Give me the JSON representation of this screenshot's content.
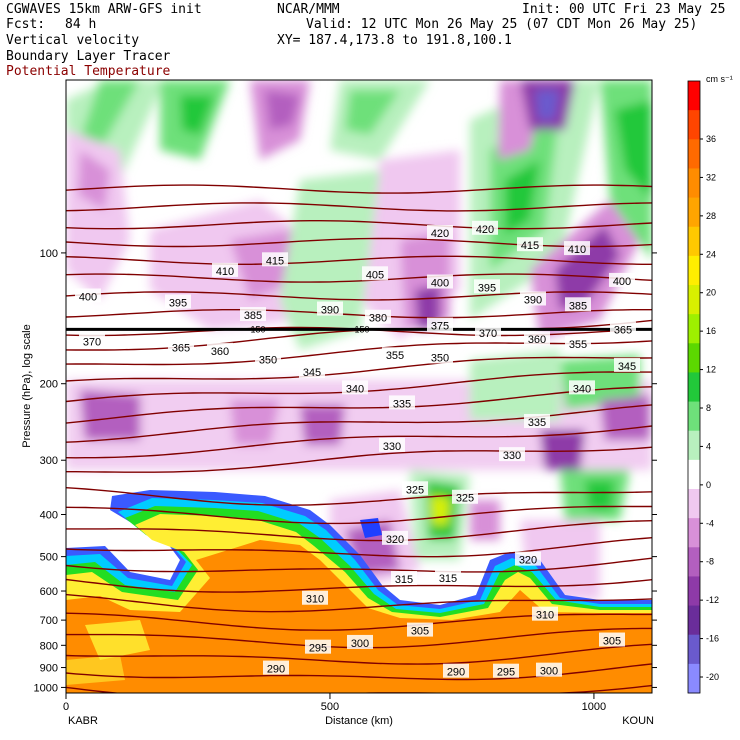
{
  "header": {
    "model": "CGWAVES 15km ARW-GFS init",
    "org": "NCAR/MMM",
    "init": "Init: 00 UTC Fri 23 May 25",
    "fcst_label": "Fcst:",
    "fcst_value": "84 h",
    "valid": "Valid: 12 UTC Mon 26 May 25 (07 CDT Mon 26 May 25)",
    "field1": "Vertical velocity",
    "xy": "XY= 187.4,173.8 to 191.8,100.1",
    "field2": "Boundary Layer Tracer",
    "field3": "Potential Temperature"
  },
  "chart_data": {
    "type": "heatmap",
    "xlabel": "Distance (km)",
    "ylabel": "Pressure (hPa), log scale",
    "x_ticks": [
      "0",
      "500",
      "1000"
    ],
    "x_tick_values": [
      0,
      500,
      1000
    ],
    "xlim": [
      0,
      1110
    ],
    "y_ticks": [
      "100",
      "200",
      "300",
      "400",
      "500",
      "600",
      "700",
      "800",
      "900",
      "1000"
    ],
    "y_tick_values": [
      100,
      200,
      300,
      400,
      500,
      600,
      700,
      800,
      900,
      1000
    ],
    "ylim": [
      1030,
      40
    ],
    "endpoint_left": "KABR",
    "endpoint_right": "KOUN",
    "colorbar": {
      "unit": "cm s⁻¹",
      "labels": [
        "36",
        "32",
        "28",
        "24",
        "20",
        "16",
        "12",
        "8",
        "4",
        "0",
        "-4",
        "-8",
        "-12",
        "-16",
        "-20"
      ],
      "values": [
        36,
        32,
        28,
        24,
        20,
        16,
        12,
        8,
        4,
        0,
        -4,
        -8,
        -12,
        -16,
        -20
      ],
      "colors": [
        "#ff0000",
        "#ff4500",
        "#ff6a00",
        "#ff8c00",
        "#ffa500",
        "#ffc800",
        "#ffee00",
        "#d8f000",
        "#9ef000",
        "#5cd800",
        "#22c83a",
        "#6ee07a",
        "#b8f0be",
        "#ffffff",
        "#f0c8f0",
        "#d890d8",
        "#b35fbf",
        "#8e3aa8",
        "#6a2d9a",
        "#6a5acd",
        "#8a8aff"
      ]
    },
    "theta_labels": [
      {
        "v": "420",
        "x": 440,
        "p": 90
      },
      {
        "v": "420",
        "x": 485,
        "p": 88
      },
      {
        "v": "415",
        "x": 275,
        "p": 104
      },
      {
        "v": "415",
        "x": 530,
        "p": 96
      },
      {
        "v": "410",
        "x": 225,
        "p": 110
      },
      {
        "v": "410",
        "x": 577,
        "p": 98
      },
      {
        "v": "405",
        "x": 375,
        "p": 112
      },
      {
        "v": "400",
        "x": 88,
        "p": 126
      },
      {
        "v": "400",
        "x": 440,
        "p": 117
      },
      {
        "v": "400",
        "x": 622,
        "p": 116
      },
      {
        "v": "395",
        "x": 178,
        "p": 130
      },
      {
        "v": "395",
        "x": 487,
        "p": 120
      },
      {
        "v": "390",
        "x": 330,
        "p": 135
      },
      {
        "v": "390",
        "x": 533,
        "p": 128
      },
      {
        "v": "385",
        "x": 253,
        "p": 139
      },
      {
        "v": "385",
        "x": 578,
        "p": 132
      },
      {
        "v": "380",
        "x": 378,
        "p": 141
      },
      {
        "v": "375",
        "x": 440,
        "p": 147
      },
      {
        "v": "370",
        "x": 488,
        "p": 153
      },
      {
        "v": "370",
        "x": 92,
        "p": 160
      },
      {
        "v": "365",
        "x": 181,
        "p": 165
      },
      {
        "v": "365",
        "x": 623,
        "p": 150
      },
      {
        "v": "360",
        "x": 220,
        "p": 168
      },
      {
        "v": "360",
        "x": 537,
        "p": 158
      },
      {
        "v": "355",
        "x": 395,
        "p": 172
      },
      {
        "v": "355",
        "x": 578,
        "p": 162
      },
      {
        "v": "350",
        "x": 268,
        "p": 176
      },
      {
        "v": "350",
        "x": 440,
        "p": 174
      },
      {
        "v": "345",
        "x": 312,
        "p": 188
      },
      {
        "v": "345",
        "x": 627,
        "p": 182
      },
      {
        "v": "340",
        "x": 355,
        "p": 205
      },
      {
        "v": "340",
        "x": 582,
        "p": 205
      },
      {
        "v": "335",
        "x": 402,
        "p": 222
      },
      {
        "v": "335",
        "x": 537,
        "p": 245
      },
      {
        "v": "330",
        "x": 392,
        "p": 278
      },
      {
        "v": "330",
        "x": 512,
        "p": 292
      },
      {
        "v": "325",
        "x": 415,
        "p": 350
      },
      {
        "v": "325",
        "x": 465,
        "p": 366
      },
      {
        "v": "320",
        "x": 395,
        "p": 455
      },
      {
        "v": "320",
        "x": 528,
        "p": 508
      },
      {
        "v": "315",
        "x": 404,
        "p": 563
      },
      {
        "v": "315",
        "x": 448,
        "p": 560
      },
      {
        "v": "310",
        "x": 315,
        "p": 625
      },
      {
        "v": "310",
        "x": 545,
        "p": 680
      },
      {
        "v": "305",
        "x": 420,
        "p": 740
      },
      {
        "v": "305",
        "x": 612,
        "p": 780
      },
      {
        "v": "300",
        "x": 360,
        "p": 790
      },
      {
        "v": "300",
        "x": 549,
        "p": 915
      },
      {
        "v": "295",
        "x": 318,
        "p": 810
      },
      {
        "v": "295",
        "x": 506,
        "p": 920
      },
      {
        "v": "290",
        "x": 276,
        "p": 905
      },
      {
        "v": "290",
        "x": 456,
        "p": 920
      }
    ],
    "tropopause_label": "150",
    "tropopause_pressure": 150
  }
}
